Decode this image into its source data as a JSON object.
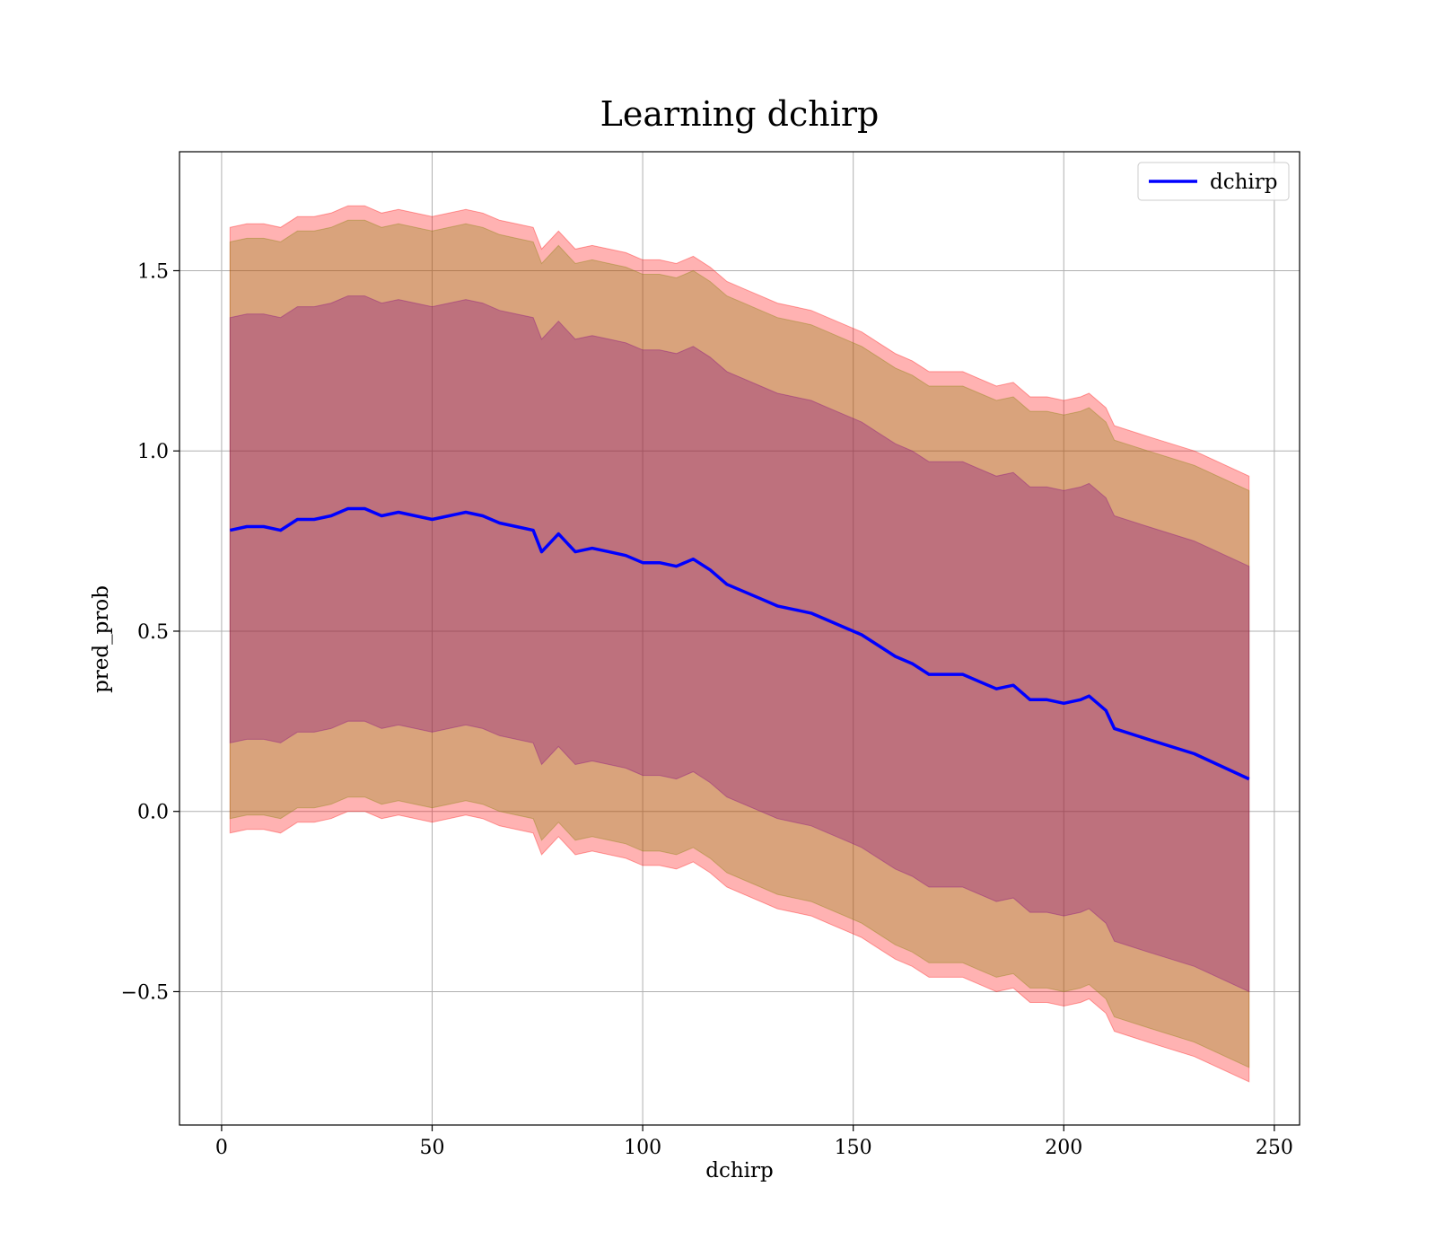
{
  "chart_data": {
    "type": "area",
    "title": "Learning dchirp",
    "xlabel": "dchirp",
    "ylabel": "pred_prob",
    "xlim": [
      -10,
      256
    ],
    "ylim": [
      -0.87,
      1.83
    ],
    "x_ticks": [
      0,
      50,
      100,
      150,
      200,
      250
    ],
    "x_tick_labels": [
      "0",
      "50",
      "100",
      "150",
      "200",
      "250"
    ],
    "y_ticks": [
      -0.5,
      0.0,
      0.5,
      1.0,
      1.5
    ],
    "y_tick_labels": [
      "−0.5",
      "0.0",
      "0.5",
      "1.0",
      "1.5"
    ],
    "grid": true,
    "legend": {
      "placement": "top-right",
      "entries": [
        "dchirp"
      ]
    },
    "x": [
      2,
      6,
      10,
      14,
      18,
      22,
      26,
      30,
      34,
      38,
      42,
      46,
      50,
      54,
      58,
      62,
      66,
      70,
      74,
      76,
      80,
      84,
      88,
      92,
      96,
      100,
      104,
      108,
      112,
      116,
      120,
      124,
      128,
      132,
      136,
      140,
      144,
      148,
      152,
      156,
      160,
      164,
      168,
      172,
      176,
      180,
      184,
      188,
      192,
      196,
      200,
      204,
      206,
      210,
      212,
      220,
      231,
      244
    ],
    "series": [
      {
        "name": "dchirp",
        "color": "#0000ff",
        "values": [
          0.78,
          0.79,
          0.79,
          0.78,
          0.81,
          0.81,
          0.82,
          0.84,
          0.84,
          0.82,
          0.83,
          0.82,
          0.81,
          0.82,
          0.83,
          0.82,
          0.8,
          0.79,
          0.78,
          0.72,
          0.77,
          0.72,
          0.73,
          0.72,
          0.71,
          0.69,
          0.69,
          0.68,
          0.7,
          0.67,
          0.63,
          0.61,
          0.59,
          0.57,
          0.56,
          0.55,
          0.53,
          0.51,
          0.49,
          0.46,
          0.43,
          0.41,
          0.38,
          0.38,
          0.38,
          0.36,
          0.34,
          0.35,
          0.31,
          0.31,
          0.3,
          0.31,
          0.32,
          0.28,
          0.23,
          0.2,
          0.16,
          0.09
        ]
      }
    ],
    "bands": [
      {
        "fill": "#ff0000",
        "opacity": 0.3,
        "offset": 0.84
      },
      {
        "fill": "#808000",
        "opacity": 0.3,
        "offset": 0.8
      },
      {
        "fill": "#800080",
        "opacity": 0.3,
        "offset": 0.59
      }
    ]
  }
}
